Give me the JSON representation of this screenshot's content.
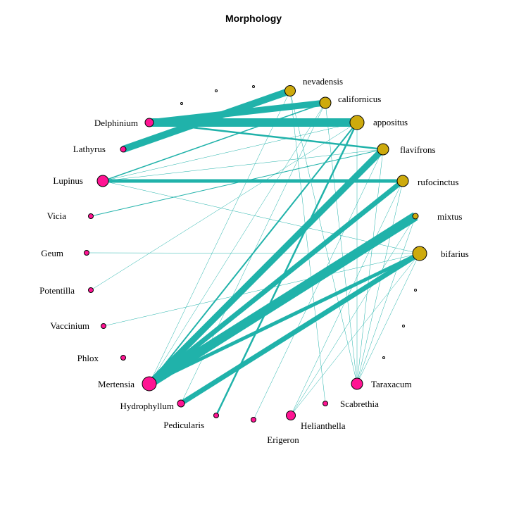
{
  "title": "Morphology",
  "colors": {
    "edge": "#20b2aa",
    "plant": "#ff1493",
    "pollinator": "#cdaa0d",
    "node_stroke": "#000000"
  },
  "nodes": [
    {
      "id": "nevadensis",
      "label": "nevadensis",
      "group": "pollinator"
    },
    {
      "id": "californicus",
      "label": "californicus",
      "group": "pollinator"
    },
    {
      "id": "appositus",
      "label": "appositus",
      "group": "pollinator"
    },
    {
      "id": "flavifrons",
      "label": "flavifrons",
      "group": "pollinator"
    },
    {
      "id": "rufocinctus",
      "label": "rufocinctus",
      "group": "pollinator"
    },
    {
      "id": "mixtus",
      "label": "mixtus",
      "group": "pollinator"
    },
    {
      "id": "bifarius",
      "label": "bifarius",
      "group": "pollinator"
    },
    {
      "id": "Delphinium",
      "label": "Delphinium",
      "group": "plant"
    },
    {
      "id": "Lathyrus",
      "label": "Lathyrus",
      "group": "plant"
    },
    {
      "id": "Lupinus",
      "label": "Lupinus",
      "group": "plant"
    },
    {
      "id": "Vicia",
      "label": "Vicia",
      "group": "plant"
    },
    {
      "id": "Geum",
      "label": "Geum",
      "group": "plant"
    },
    {
      "id": "Potentilla",
      "label": "Potentilla",
      "group": "plant"
    },
    {
      "id": "Vaccinium",
      "label": "Vaccinium",
      "group": "plant"
    },
    {
      "id": "Phlox",
      "label": "Phlox",
      "group": "plant"
    },
    {
      "id": "Mertensia",
      "label": "Mertensia",
      "group": "plant"
    },
    {
      "id": "Hydrophyllum",
      "label": "Hydrophyllum",
      "group": "plant"
    },
    {
      "id": "Pedicularis",
      "label": "Pedicularis",
      "group": "plant"
    },
    {
      "id": "Erigeron",
      "label": "Erigeron",
      "group": "plant"
    },
    {
      "id": "Helianthella",
      "label": "Helianthella",
      "group": "plant"
    },
    {
      "id": "Scabrethia",
      "label": "Scabrethia",
      "group": "plant"
    },
    {
      "id": "Taraxacum",
      "label": "Taraxacum",
      "group": "plant"
    },
    {
      "id": "u1",
      "label": "",
      "group": "pollinator"
    },
    {
      "id": "u2",
      "label": "",
      "group": "pollinator"
    },
    {
      "id": "u3",
      "label": "",
      "group": "pollinator"
    },
    {
      "id": "u4",
      "label": "",
      "group": "pollinator"
    },
    {
      "id": "u5",
      "label": "",
      "group": "pollinator"
    },
    {
      "id": "u6",
      "label": "",
      "group": "pollinator"
    }
  ],
  "edges": [
    {
      "from": "Lathyrus",
      "to": "nevadensis",
      "weight": 10
    },
    {
      "from": "Delphinium",
      "to": "californicus",
      "weight": 9
    },
    {
      "from": "Delphinium",
      "to": "appositus",
      "weight": 12
    },
    {
      "from": "Delphinium",
      "to": "flavifrons",
      "weight": 2.5
    },
    {
      "from": "Lupinus",
      "to": "rufocinctus",
      "weight": 5
    },
    {
      "from": "Lupinus",
      "to": "californicus",
      "weight": 1.5
    },
    {
      "from": "Lupinus",
      "to": "flavifrons",
      "weight": 0.5
    },
    {
      "from": "Lupinus",
      "to": "appositus",
      "weight": 0.5
    },
    {
      "from": "Lupinus",
      "to": "bifarius",
      "weight": 0.5
    },
    {
      "from": "Vicia",
      "to": "flavifrons",
      "weight": 1
    },
    {
      "from": "Geum",
      "to": "bifarius",
      "weight": 0.5
    },
    {
      "from": "Potentilla",
      "to": "appositus",
      "weight": 0.5
    },
    {
      "from": "Vaccinium",
      "to": "bifarius",
      "weight": 0.5
    },
    {
      "from": "Mertensia",
      "to": "mixtus",
      "weight": 13
    },
    {
      "from": "Mertensia",
      "to": "flavifrons",
      "weight": 9
    },
    {
      "from": "Mertensia",
      "to": "rufocinctus",
      "weight": 7
    },
    {
      "from": "Mertensia",
      "to": "bifarius",
      "weight": 5
    },
    {
      "from": "Mertensia",
      "to": "appositus",
      "weight": 2
    },
    {
      "from": "Mertensia",
      "to": "nevadensis",
      "weight": 0.5
    },
    {
      "from": "Mertensia",
      "to": "californicus",
      "weight": 0.5
    },
    {
      "from": "Hydrophyllum",
      "to": "bifarius",
      "weight": 7
    },
    {
      "from": "Hydrophyllum",
      "to": "californicus",
      "weight": 0.5
    },
    {
      "from": "Pedicularis",
      "to": "appositus",
      "weight": 2.5
    },
    {
      "from": "Erigeron",
      "to": "flavifrons",
      "weight": 0.5
    },
    {
      "from": "Helianthella",
      "to": "bifarius",
      "weight": 0.5
    },
    {
      "from": "Helianthella",
      "to": "mixtus",
      "weight": 0.5
    },
    {
      "from": "Helianthella",
      "to": "rufocinctus",
      "weight": 0.5
    },
    {
      "from": "Scabrethia",
      "to": "nevadensis",
      "weight": 0.5
    },
    {
      "from": "Taraxacum",
      "to": "bifarius",
      "weight": 0.5
    },
    {
      "from": "Taraxacum",
      "to": "mixtus",
      "weight": 0.5
    },
    {
      "from": "Taraxacum",
      "to": "rufocinctus",
      "weight": 0.5
    },
    {
      "from": "Taraxacum",
      "to": "flavifrons",
      "weight": 0.5
    },
    {
      "from": "Taraxacum",
      "to": "appositus",
      "weight": 0.5
    },
    {
      "from": "Taraxacum",
      "to": "californicus",
      "weight": 0.5
    },
    {
      "from": "Taraxacum",
      "to": "nevadensis",
      "weight": 0.5
    }
  ]
}
